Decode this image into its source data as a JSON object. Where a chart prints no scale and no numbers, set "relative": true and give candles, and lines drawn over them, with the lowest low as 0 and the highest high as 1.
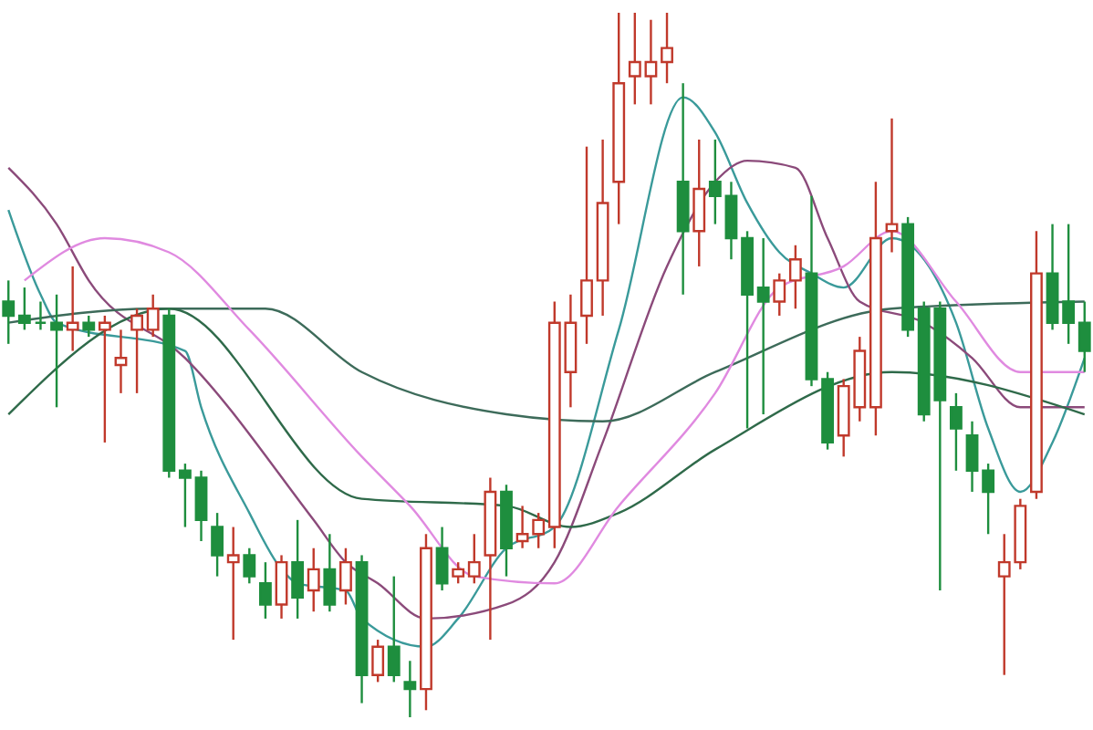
{
  "chart_data": {
    "type": "candlestick",
    "relative": true,
    "categories": [
      null,
      null,
      null,
      null,
      null,
      null,
      null,
      null,
      null,
      null,
      null,
      null,
      null,
      null,
      null,
      null,
      null,
      null,
      null,
      null,
      null,
      null,
      null,
      null,
      null,
      null,
      null,
      null,
      null,
      null,
      null,
      null,
      null,
      null,
      null,
      null,
      null,
      null,
      null,
      null,
      null,
      null,
      null,
      null,
      null,
      null,
      null,
      null,
      null,
      null,
      null,
      null,
      null,
      null,
      null,
      null,
      null,
      null,
      null,
      null,
      null,
      null,
      null,
      null,
      null,
      null,
      null,
      null
    ],
    "ohlc": [
      [
        0.59,
        0.62,
        0.53,
        0.57
      ],
      [
        0.57,
        0.61,
        0.55,
        0.56
      ],
      [
        0.56,
        0.59,
        0.55,
        0.56
      ],
      [
        0.56,
        0.6,
        0.44,
        0.55
      ],
      [
        0.55,
        0.64,
        0.52,
        0.56
      ],
      [
        0.56,
        0.57,
        0.54,
        0.55
      ],
      [
        0.55,
        0.57,
        0.39,
        0.56
      ],
      [
        0.5,
        0.55,
        0.46,
        0.51
      ],
      [
        0.55,
        0.58,
        0.46,
        0.57
      ],
      [
        0.55,
        0.6,
        0.54,
        0.58
      ],
      [
        0.57,
        0.58,
        0.34,
        0.35
      ],
      [
        0.35,
        0.36,
        0.27,
        0.34
      ],
      [
        0.34,
        0.35,
        0.25,
        0.28
      ],
      [
        0.27,
        0.29,
        0.2,
        0.23
      ],
      [
        0.22,
        0.27,
        0.11,
        0.23
      ],
      [
        0.23,
        0.24,
        0.19,
        0.2
      ],
      [
        0.19,
        0.22,
        0.14,
        0.16
      ],
      [
        0.16,
        0.23,
        0.14,
        0.22
      ],
      [
        0.22,
        0.28,
        0.14,
        0.17
      ],
      [
        0.18,
        0.24,
        0.15,
        0.21
      ],
      [
        0.21,
        0.26,
        0.15,
        0.16
      ],
      [
        0.18,
        0.24,
        0.16,
        0.22
      ],
      [
        0.22,
        0.23,
        0.02,
        0.06
      ],
      [
        0.06,
        0.11,
        0.05,
        0.1
      ],
      [
        0.1,
        0.2,
        0.05,
        0.06
      ],
      [
        0.05,
        0.08,
        0,
        0.04
      ],
      [
        0.04,
        0.26,
        0.01,
        0.24
      ],
      [
        0.24,
        0.27,
        0.18,
        0.19
      ],
      [
        0.2,
        0.22,
        0.19,
        0.21
      ],
      [
        0.2,
        0.26,
        0.19,
        0.22
      ],
      [
        0.23,
        0.34,
        0.11,
        0.32
      ],
      [
        0.32,
        0.33,
        0.2,
        0.24
      ],
      [
        0.25,
        0.3,
        0.24,
        0.26
      ],
      [
        0.26,
        0.29,
        0.24,
        0.28
      ],
      [
        0.27,
        0.59,
        0.24,
        0.56
      ],
      [
        0.49,
        0.6,
        0.44,
        0.56
      ],
      [
        0.57,
        0.81,
        0.53,
        0.62
      ],
      [
        0.62,
        0.82,
        0.57,
        0.73
      ],
      [
        0.76,
        1,
        0.7,
        0.9
      ],
      [
        0.91,
        1,
        0.87,
        0.93
      ],
      [
        0.91,
        0.99,
        0.87,
        0.93
      ],
      [
        0.93,
        1,
        0.9,
        0.95
      ],
      [
        0.76,
        0.9,
        0.6,
        0.69
      ],
      [
        0.69,
        0.82,
        0.64,
        0.75
      ],
      [
        0.76,
        0.82,
        0.7,
        0.74
      ],
      [
        0.74,
        0.76,
        0.65,
        0.68
      ],
      [
        0.68,
        0.69,
        0.41,
        0.6
      ],
      [
        0.61,
        0.68,
        0.43,
        0.59
      ],
      [
        0.59,
        0.63,
        0.57,
        0.62
      ],
      [
        0.62,
        0.67,
        0.58,
        0.65
      ],
      [
        0.63,
        0.74,
        0.47,
        0.48
      ],
      [
        0.48,
        0.49,
        0.38,
        0.39
      ],
      [
        0.4,
        0.48,
        0.37,
        0.47
      ],
      [
        0.44,
        0.54,
        0.42,
        0.52
      ],
      [
        0.44,
        0.76,
        0.4,
        0.68
      ],
      [
        0.69,
        0.85,
        0.66,
        0.7
      ],
      [
        0.7,
        0.71,
        0.54,
        0.55
      ],
      [
        0.58,
        0.59,
        0.42,
        0.43
      ],
      [
        0.58,
        0.59,
        0.18,
        0.45
      ],
      [
        0.44,
        0.46,
        0.35,
        0.41
      ],
      [
        0.4,
        0.42,
        0.32,
        0.35
      ],
      [
        0.35,
        0.36,
        0.26,
        0.32
      ],
      [
        0.2,
        0.26,
        0.06,
        0.22
      ],
      [
        0.22,
        0.31,
        0.21,
        0.3
      ],
      [
        0.32,
        0.69,
        0.31,
        0.63
      ],
      [
        0.63,
        0.7,
        0.55,
        0.56
      ],
      [
        0.59,
        0.7,
        0.53,
        0.56
      ],
      [
        0.56,
        0.59,
        0.49,
        0.52
      ]
    ],
    "colors": [
      "#1e8e3e",
      "#1e8e3e",
      "#1e8e3e",
      "#1e8e3e",
      "#c0392b",
      "#1e8e3e",
      "#c0392b",
      "#c0392b",
      "#c0392b",
      "#c0392b",
      "#1e8e3e",
      "#1e8e3e",
      "#1e8e3e",
      "#1e8e3e",
      "#c0392b",
      "#1e8e3e",
      "#1e8e3e",
      "#c0392b",
      "#1e8e3e",
      "#c0392b",
      "#1e8e3e",
      "#c0392b",
      "#1e8e3e",
      "#c0392b",
      "#1e8e3e",
      "#1e8e3e",
      "#c0392b",
      "#1e8e3e",
      "#c0392b",
      "#c0392b",
      "#c0392b",
      "#1e8e3e",
      "#c0392b",
      "#c0392b",
      "#c0392b",
      "#c0392b",
      "#c0392b",
      "#c0392b",
      "#c0392b",
      "#c0392b",
      "#c0392b",
      "#c0392b",
      "#1e8e3e",
      "#c0392b",
      "#1e8e3e",
      "#1e8e3e",
      "#1e8e3e",
      "#1e8e3e",
      "#c0392b",
      "#c0392b",
      "#1e8e3e",
      "#1e8e3e",
      "#c0392b",
      "#c0392b",
      "#c0392b",
      "#c0392b",
      "#1e8e3e",
      "#1e8e3e",
      "#1e8e3e",
      "#1e8e3e",
      "#1e8e3e",
      "#1e8e3e",
      "#c0392b",
      "#c0392b",
      "#c0392b",
      "#1e8e3e",
      "#1e8e3e",
      "#1e8e3e"
    ],
    "series": [
      {
        "type": "line",
        "color": "#3a9a9a",
        "values": [
          0.72,
          null,
          0.6,
          0.56,
          null,
          null,
          null,
          null,
          null,
          null,
          null,
          0.52,
          0.44,
          null,
          null,
          0.29,
          null,
          0.21,
          0.19,
          null,
          null,
          0.18,
          0.14,
          null,
          null,
          null,
          0.1,
          null,
          0.14,
          null,
          null,
          0.24,
          null,
          null,
          0.27,
          null,
          null,
          null,
          0.55,
          null,
          null,
          null,
          0.88,
          null,
          0.83,
          null,
          0.73,
          null,
          0.66,
          null,
          0.63,
          null,
          0.61,
          null,
          null,
          0.68,
          null,
          null,
          null,
          0.56,
          null,
          0.41,
          null,
          0.32,
          null,
          0.39,
          null,
          0.51
        ]
      },
      {
        "type": "line",
        "color": "#8b4a7a",
        "values": [
          0.78,
          null,
          null,
          0.7,
          null,
          0.62,
          null,
          null,
          null,
          null,
          null,
          0.51,
          null,
          null,
          null,
          null,
          null,
          null,
          null,
          0.28,
          null,
          0.22,
          null,
          0.19,
          null,
          null,
          0.14,
          null,
          null,
          null,
          null,
          0.16,
          null,
          null,
          0.22,
          null,
          null,
          0.39,
          null,
          null,
          null,
          0.64,
          null,
          null,
          0.76,
          null,
          0.79,
          null,
          null,
          0.78,
          null,
          0.68,
          null,
          0.59,
          null,
          null,
          null,
          0.56,
          null,
          null,
          0.51,
          null,
          null,
          0.44,
          null,
          null,
          null,
          0.44
        ]
      },
      {
        "type": "line",
        "color": "#3d6b5a",
        "values": [
          0.56,
          null,
          null,
          null,
          null,
          null,
          null,
          null,
          null,
          0.58,
          null,
          null,
          null,
          null,
          null,
          null,
          0.58,
          null,
          null,
          null,
          null,
          null,
          0.49,
          null,
          null,
          null,
          null,
          null,
          null,
          null,
          null,
          0.43,
          null,
          null,
          null,
          null,
          null,
          0.42,
          null,
          null,
          null,
          null,
          null,
          null,
          0.49,
          null,
          null,
          null,
          null,
          null,
          null,
          null,
          null,
          null,
          null,
          0.58,
          null,
          null,
          null,
          null,
          null,
          null,
          null,
          null,
          null,
          null,
          null,
          0.59
        ]
      },
      {
        "type": "line",
        "color": "#2f6a4a",
        "values": [
          0.43,
          null,
          null,
          null,
          null,
          null,
          null,
          null,
          null,
          null,
          0.58,
          null,
          null,
          null,
          null,
          null,
          null,
          null,
          null,
          null,
          null,
          null,
          0.31,
          null,
          null,
          null,
          null,
          null,
          null,
          null,
          null,
          0.3,
          null,
          null,
          null,
          0.27,
          null,
          null,
          0.29,
          null,
          null,
          null,
          null,
          null,
          0.38,
          null,
          null,
          null,
          null,
          null,
          null,
          null,
          null,
          null,
          null,
          0.49,
          null,
          null,
          null,
          null,
          null,
          null,
          null,
          null,
          null,
          null,
          null,
          0.43
        ]
      },
      {
        "type": "line",
        "color": "#e08ae0",
        "values": [
          null,
          0.62,
          null,
          null,
          null,
          null,
          0.68,
          null,
          null,
          null,
          0.66,
          null,
          null,
          null,
          null,
          0.55,
          null,
          null,
          null,
          null,
          null,
          null,
          0.37,
          null,
          null,
          0.3,
          null,
          null,
          null,
          0.2,
          null,
          null,
          null,
          null,
          0.19,
          null,
          null,
          null,
          0.3,
          null,
          null,
          null,
          null,
          null,
          0.46,
          null,
          null,
          null,
          0.61,
          null,
          null,
          null,
          0.64,
          null,
          null,
          0.69,
          null,
          null,
          null,
          0.59,
          null,
          null,
          null,
          0.49,
          null,
          null,
          null,
          0.49
        ]
      }
    ]
  }
}
